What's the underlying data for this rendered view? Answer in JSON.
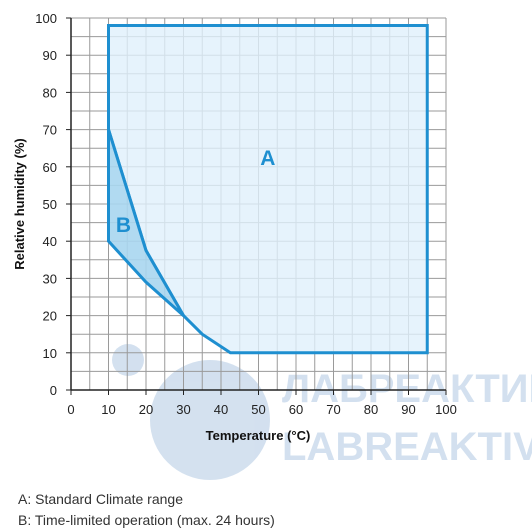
{
  "chart_data": {
    "type": "area",
    "xlabel": "Temperature (°C)",
    "ylabel": "Relative humidity (%)",
    "xlim": [
      0,
      100
    ],
    "ylim": [
      0,
      100
    ],
    "xticks": [
      "0",
      "10",
      "20",
      "30",
      "40",
      "50",
      "60",
      "70",
      "80",
      "90",
      "100"
    ],
    "yticks": [
      "0",
      "10",
      "20",
      "30",
      "40",
      "50",
      "60",
      "70",
      "80",
      "90",
      "100"
    ],
    "grid": true,
    "regions": [
      {
        "label": "A",
        "points": [
          [
            10,
            98
          ],
          [
            95,
            98
          ],
          [
            95,
            10
          ],
          [
            42.5,
            10
          ],
          [
            35,
            15
          ],
          [
            30,
            20
          ],
          [
            20,
            37.5
          ],
          [
            10,
            70
          ],
          [
            10,
            98
          ]
        ],
        "label_pos": [
          52.5,
          62
        ]
      },
      {
        "label": "B",
        "points": [
          [
            10,
            70
          ],
          [
            20,
            37.5
          ],
          [
            30,
            20
          ],
          [
            20,
            29
          ],
          [
            10,
            40
          ],
          [
            10,
            70
          ]
        ],
        "label_pos": [
          14,
          44
        ]
      }
    ],
    "colors": {
      "line": "#1e8fd0",
      "fill_a": "#e0f0fb",
      "fill_b": "#a9d6f0",
      "grid": "#9a9a9a"
    }
  },
  "legend": {
    "a": "A: Standard Climate range",
    "b": "B: Time-limited operation (max. 24 hours)"
  },
  "watermark": {
    "line1": "ЛАБРЕАКТИВ",
    "line2": "LABREAKTIV"
  }
}
